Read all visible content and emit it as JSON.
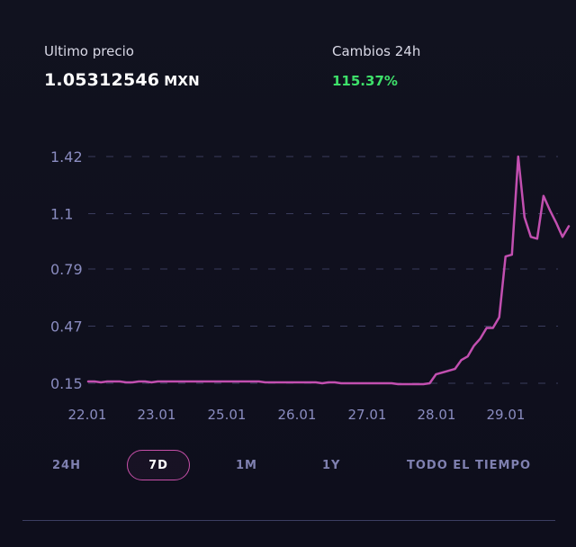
{
  "stats": {
    "price_label": "Ultimo precio",
    "price_value": "1.05312546",
    "price_unit": "MXN",
    "change_label": "Cambios 24h",
    "change_value": "115.37%",
    "change_color": "#3ee06a"
  },
  "chart_data": {
    "type": "line",
    "title": "",
    "xlabel": "",
    "ylabel": "",
    "x_ticks": [
      "22.01",
      "23.01",
      "25.01",
      "26.01",
      "27.01",
      "28.01",
      "29.01"
    ],
    "y_ticks": [
      "1.42",
      "1.1",
      "0.79",
      "0.47",
      "0.15"
    ],
    "ylim": [
      0.15,
      1.42
    ],
    "grid": true,
    "line_color": "#c24fb0",
    "series": [
      {
        "values": [
          0.16,
          0.16,
          0.155,
          0.16,
          0.16,
          0.16,
          0.155,
          0.155,
          0.16,
          0.16,
          0.155,
          0.16,
          0.16,
          0.16,
          0.16,
          0.16,
          0.16,
          0.16,
          0.16,
          0.16,
          0.16,
          0.16,
          0.16,
          0.16,
          0.16,
          0.16,
          0.16,
          0.16,
          0.155,
          0.155,
          0.155,
          0.155,
          0.155,
          0.155,
          0.155,
          0.155,
          0.155,
          0.15,
          0.155,
          0.155,
          0.15,
          0.15,
          0.15,
          0.15,
          0.15,
          0.15,
          0.15,
          0.15,
          0.15,
          0.145,
          0.145,
          0.145,
          0.145,
          0.145,
          0.15,
          0.2,
          0.21,
          0.22,
          0.23,
          0.28,
          0.3,
          0.36,
          0.4,
          0.46,
          0.46,
          0.52,
          0.86,
          0.87,
          1.42,
          1.08,
          0.97,
          0.96,
          1.2,
          1.12,
          1.05,
          0.97,
          1.03
        ]
      }
    ]
  },
  "ranges": {
    "items": [
      {
        "label": "24H"
      },
      {
        "label": "7D"
      },
      {
        "label": "1M"
      },
      {
        "label": "1Y"
      },
      {
        "label": "TODO EL TIEMPO"
      }
    ],
    "active": "7D"
  }
}
